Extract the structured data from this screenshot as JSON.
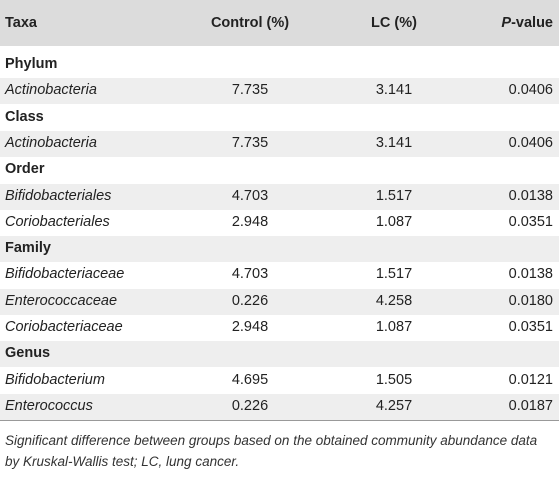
{
  "header": {
    "taxa": "Taxa",
    "control": "Control (%)",
    "lc": "LC (%)",
    "p_italic": "P",
    "p_rest": "-value"
  },
  "rows": [
    {
      "type": "section",
      "label": "Phylum"
    },
    {
      "type": "data",
      "taxon": "Actinobacteria",
      "control": "7.735",
      "lc": "3.141",
      "p": "0.0406"
    },
    {
      "type": "section",
      "label": "Class"
    },
    {
      "type": "data",
      "taxon": "Actinobacteria",
      "control": "7.735",
      "lc": "3.141",
      "p": "0.0406"
    },
    {
      "type": "section",
      "label": "Order"
    },
    {
      "type": "data",
      "taxon": "Bifidobacteriales",
      "control": "4.703",
      "lc": "1.517",
      "p": "0.0138"
    },
    {
      "type": "data",
      "taxon": "Coriobacteriales",
      "control": "2.948",
      "lc": "1.087",
      "p": "0.0351"
    },
    {
      "type": "section",
      "label": "Family"
    },
    {
      "type": "data",
      "taxon": "Bifidobacteriaceae",
      "control": "4.703",
      "lc": "1.517",
      "p": "0.0138"
    },
    {
      "type": "data",
      "taxon": "Enterococcaceae",
      "control": "0.226",
      "lc": "4.258",
      "p": "0.0180"
    },
    {
      "type": "data",
      "taxon": "Coriobacteriaceae",
      "control": "2.948",
      "lc": "1.087",
      "p": "0.0351"
    },
    {
      "type": "section",
      "label": "Genus"
    },
    {
      "type": "data",
      "taxon": "Bifidobacterium",
      "control": "4.695",
      "lc": "1.505",
      "p": "0.0121"
    },
    {
      "type": "data",
      "taxon": "Enterococcus",
      "control": "0.226",
      "lc": "4.257",
      "p": "0.0187"
    }
  ],
  "footnote": "Significant difference between groups based on the obtained community abundance data by Kruskal-Wallis test; LC, lung cancer."
}
